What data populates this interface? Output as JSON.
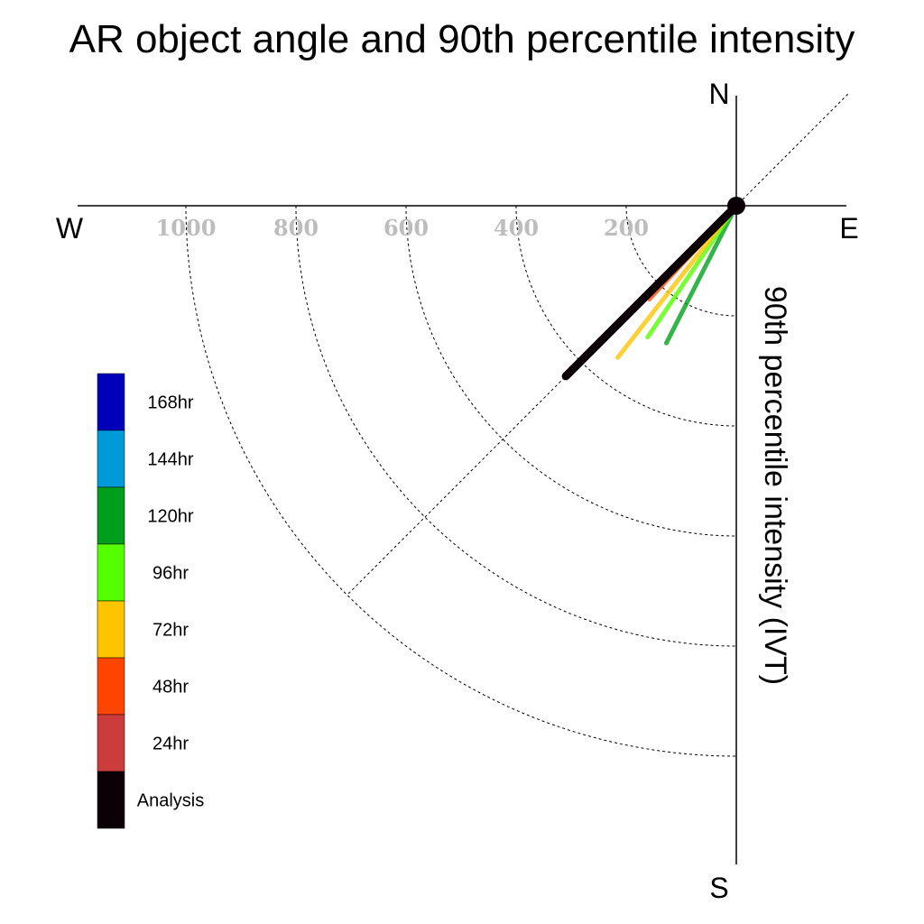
{
  "chart_data": {
    "type": "polar-vector",
    "title": "AR object angle and 90th percentile intensity",
    "ylabel": "90th percentile intensity (IVT)",
    "compass": {
      "north": "N",
      "south": "S",
      "east": "E",
      "west": "W"
    },
    "radial_ticks": [
      200,
      400,
      600,
      800,
      1000
    ],
    "radial_tick_labels": [
      "200",
      "400",
      "600",
      "800",
      "1000"
    ],
    "rlim": [
      0,
      1000
    ],
    "diagonal_reference_deg": 45,
    "series": [
      {
        "name": "168hr",
        "color": "#0000bb",
        "angle_deg": 225,
        "intensity": 240,
        "style": "dashed"
      },
      {
        "name": "144hr",
        "color": "#009ad9",
        "angle_deg": 225,
        "intensity": 208,
        "style": "solid"
      },
      {
        "name": "120hr",
        "color": "#009e1d",
        "angle_deg": 207,
        "intensity": 280,
        "style": "solid"
      },
      {
        "name": "96hr",
        "color": "#55ff00",
        "angle_deg": 214,
        "intensity": 288,
        "style": "solid"
      },
      {
        "name": "72hr",
        "color": "#ffc400",
        "angle_deg": 218,
        "intensity": 350,
        "style": "solid"
      },
      {
        "name": "48hr",
        "color": "#ff4400",
        "angle_deg": 223,
        "intensity": 232,
        "style": "solid"
      },
      {
        "name": "24hr",
        "color": "#cc3c3c",
        "angle_deg": 225,
        "intensity": 420,
        "style": "solid"
      },
      {
        "name": "Analysis",
        "color": "#0a0006",
        "angle_deg": 225,
        "intensity": 438,
        "style": "solid"
      }
    ],
    "legend_order": [
      "168hr",
      "144hr",
      "120hr",
      "96hr",
      "72hr",
      "48hr",
      "24hr",
      "Analysis"
    ],
    "legend_placement": "left"
  }
}
